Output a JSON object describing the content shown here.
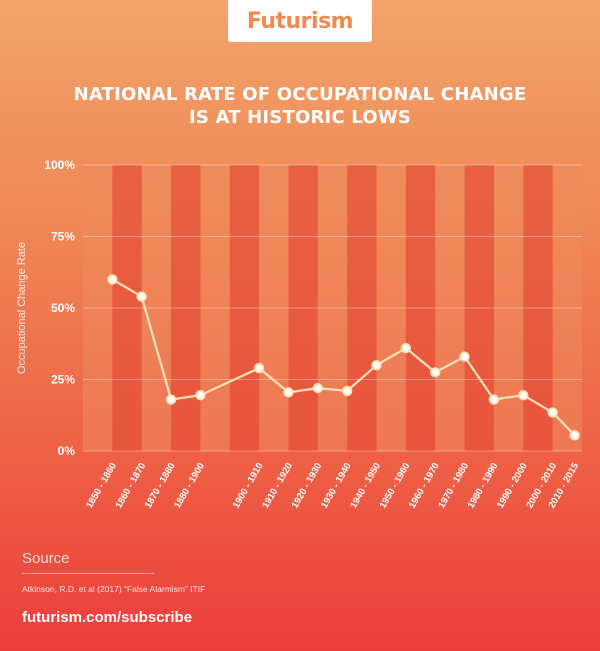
{
  "brand": {
    "logo_text": "Futurism",
    "footer_link": "futurism.com/subscribe"
  },
  "header": {
    "title_line1": "NATIONAL RATE OF OCCUPATIONAL CHANGE",
    "title_line2": "IS AT HISTORIC LOWS"
  },
  "colors": {
    "line": "#fde2b8",
    "marker_fill": "#ffffff",
    "stripe_dark": "#e6503a",
    "stripe_light": "#ee8a5c",
    "text": "#ffffff"
  },
  "chart_data": {
    "type": "line",
    "title": "NATIONAL RATE OF OCCUPATIONAL CHANGE IS AT HISTORIC LOWS",
    "xlabel": "",
    "ylabel": "Occupational Change Rate",
    "ylim": [
      0,
      100
    ],
    "yticks": [
      0,
      25,
      50,
      75,
      100
    ],
    "ytick_labels": [
      "0%",
      "25%",
      "50%",
      "75%",
      "100%"
    ],
    "grid": true,
    "categories": [
      "1850 - 1860",
      "1860 - 1870",
      "1870 - 1880",
      "1880 - 1900",
      "1900 - 1910",
      "1910 - 1920",
      "1920 - 1930",
      "1930 - 1940",
      "1940 - 1950",
      "1950 - 1960",
      "1960 - 1970",
      "1970 - 1980",
      "1980 - 1990",
      "1990 - 2000",
      "2000 - 2010",
      "2010 - 2015"
    ],
    "x_start_year": [
      1850,
      1860,
      1870,
      1880,
      1900,
      1910,
      1920,
      1930,
      1940,
      1950,
      1960,
      1970,
      1980,
      1990,
      2000,
      2010
    ],
    "values": [
      60,
      54,
      18,
      19.5,
      29,
      20.5,
      22,
      21,
      30,
      36,
      27.5,
      33,
      18,
      19.5,
      13.5,
      5.5
    ]
  },
  "source": {
    "label": "Source",
    "citation": "Atkinson, R.D. et al (2017) “False Alarmism” ITIF"
  }
}
